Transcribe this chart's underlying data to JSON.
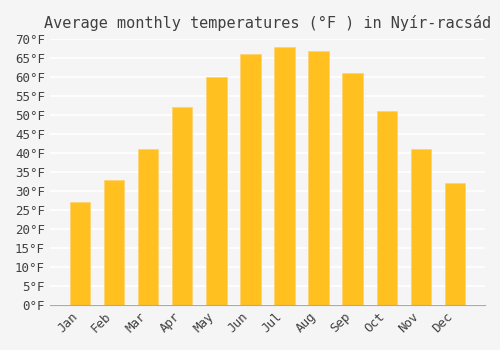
{
  "title": "Average monthly temperatures (°F ) in Nyír-racsád",
  "months": [
    "Jan",
    "Feb",
    "Mar",
    "Apr",
    "May",
    "Jun",
    "Jul",
    "Aug",
    "Sep",
    "Oct",
    "Nov",
    "Dec"
  ],
  "values": [
    27,
    33,
    41,
    52,
    60,
    66,
    68,
    67,
    61,
    51,
    41,
    32
  ],
  "bar_color": "#FFC020",
  "bar_edge_color": "#FFD070",
  "background_color": "#F5F5F5",
  "grid_color": "#FFFFFF",
  "text_color": "#404040",
  "ylim": [
    0,
    70
  ],
  "yticks": [
    0,
    5,
    10,
    15,
    20,
    25,
    30,
    35,
    40,
    45,
    50,
    55,
    60,
    65,
    70
  ],
  "title_fontsize": 11,
  "tick_fontsize": 9,
  "font_family": "monospace"
}
